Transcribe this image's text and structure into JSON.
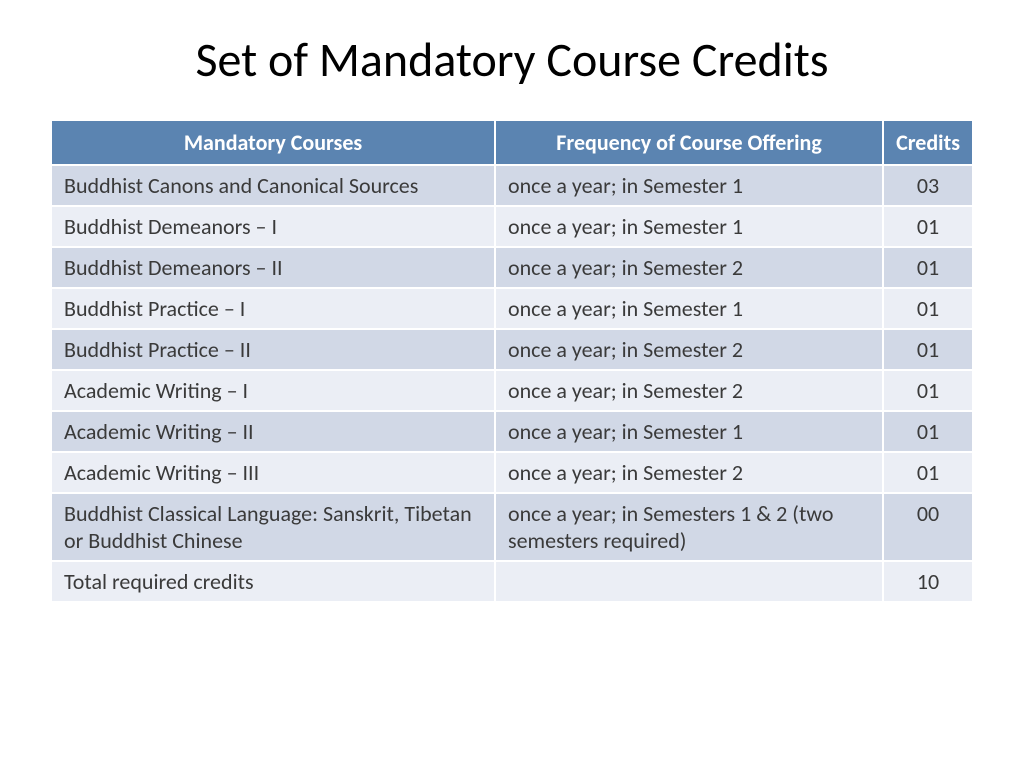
{
  "title": "Set of Mandatory Course Credits",
  "table": {
    "type": "table",
    "header_bg": "#5b84b1",
    "header_fg": "#ffffff",
    "row_odd_bg": "#d1d8e6",
    "row_even_bg": "#ebeef5",
    "text_color": "#3a3a3a",
    "border_color": "#ffffff",
    "font_size": 22,
    "columns": [
      {
        "label": "Mandatory Courses",
        "align": "left"
      },
      {
        "label": "Frequency of Course Offering",
        "align": "left"
      },
      {
        "label": "Credits",
        "align": "center"
      }
    ],
    "rows": [
      {
        "course": "Buddhist Canons and Canonical Sources",
        "freq": "once a year; in Semester 1",
        "credits": "03"
      },
      {
        "course": "Buddhist Demeanors – I",
        "freq": "once a year; in Semester 1",
        "credits": "01"
      },
      {
        "course": "Buddhist Demeanors – II",
        "freq": "once a year; in Semester 2",
        "credits": "01"
      },
      {
        "course": "Buddhist Practice – I",
        "freq": "once a year; in Semester 1",
        "credits": "01"
      },
      {
        "course": "Buddhist Practice – II",
        "freq": "once a year; in Semester 2",
        "credits": "01"
      },
      {
        "course": "Academic Writing – I",
        "freq": "once a year; in Semester 2",
        "credits": "01"
      },
      {
        "course": "Academic Writing – II",
        "freq": "once a year; in Semester 1",
        "credits": "01"
      },
      {
        "course": "Academic Writing – III",
        "freq": "once a year; in Semester 2",
        "credits": "01"
      },
      {
        "course": "Buddhist Classical Language: Sanskrit, Tibetan or Buddhist Chinese",
        "freq": "once a year; in Semesters 1 & 2 (two semesters required)",
        "credits": "00"
      },
      {
        "course": "Total required credits",
        "freq": "",
        "credits": "10"
      }
    ]
  }
}
